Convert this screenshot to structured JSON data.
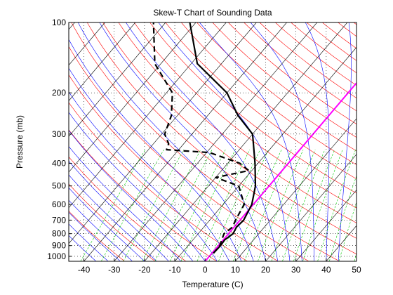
{
  "chart_data": {
    "type": "line",
    "title": "Skew-T Chart of Sounding Data",
    "xlabel": "Temperature (C)",
    "ylabel": "Pressure (mb)",
    "xlim": [
      -45,
      50
    ],
    "ylim": [
      1050,
      100
    ],
    "y_scale": "log",
    "grid": "dotted",
    "x_ticks": [
      -40,
      -30,
      -20,
      -10,
      0,
      10,
      20,
      30,
      40,
      50
    ],
    "x_tick_labels": [
      "-40",
      "-30",
      "-20",
      "-10",
      "0",
      "10",
      "20",
      "30",
      "40",
      "50"
    ],
    "y_ticks": [
      1000,
      900,
      800,
      700,
      600,
      500,
      400,
      300,
      200,
      100
    ],
    "y_tick_labels": [
      "1000",
      "900",
      "800",
      "700",
      "600",
      "500",
      "400",
      "300",
      "200",
      "100"
    ],
    "series": [
      {
        "role": "temperature",
        "color": "#000000",
        "style": "solid",
        "points": [
          [
            0.5,
            970
          ],
          [
            0.7,
            900
          ],
          [
            0.5,
            850
          ],
          [
            1.5,
            800
          ],
          [
            0.8,
            750
          ],
          [
            1.2,
            700
          ],
          [
            -0.5,
            600
          ],
          [
            -4.5,
            500
          ],
          [
            -11,
            400
          ],
          [
            -20,
            300
          ],
          [
            -30,
            250
          ],
          [
            -40,
            200
          ],
          [
            -58,
            150
          ],
          [
            -72,
            100
          ]
        ]
      },
      {
        "role": "dewpoint",
        "color": "#000000",
        "style": "dashed",
        "points": [
          [
            0.5,
            970
          ],
          [
            0.5,
            900
          ],
          [
            -0.5,
            850
          ],
          [
            -1.5,
            800
          ],
          [
            -0.5,
            750
          ],
          [
            -1.5,
            700
          ],
          [
            -3,
            600
          ],
          [
            -10,
            500
          ],
          [
            -20,
            460
          ],
          [
            -11,
            430
          ],
          [
            -16,
            400
          ],
          [
            -29,
            360
          ],
          [
            -44,
            350
          ],
          [
            -45,
            330
          ],
          [
            -49,
            300
          ],
          [
            -52,
            250
          ],
          [
            -58,
            200
          ],
          [
            -72,
            150
          ],
          [
            -84,
            100
          ]
        ]
      }
    ],
    "background_lines": {
      "isotherms_color": "#000000",
      "dry_adiabats_color": "#ff0000",
      "moist_adiabats_color": "#0000ff",
      "mixing_ratio_color": "#00cc00",
      "highlighted_isotherm_color": "#ff00ff"
    }
  }
}
